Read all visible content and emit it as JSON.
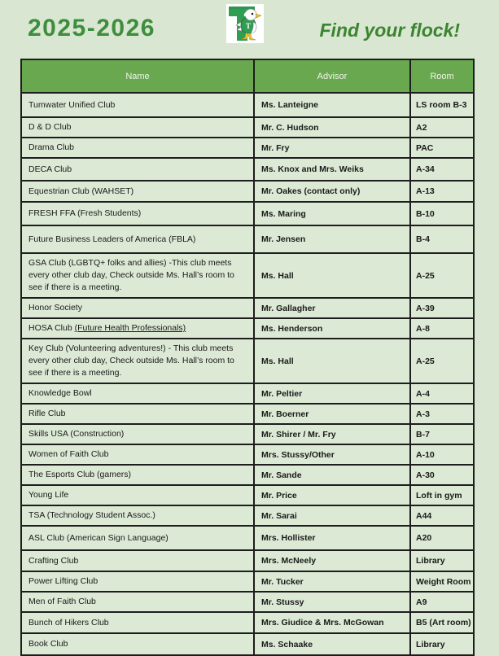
{
  "page": {
    "school_year": "2025-2026",
    "tagline": "Find your flock!",
    "logo": "tumwater-thunderbird-mascot-logo"
  },
  "colors": {
    "page_background": "#d9e7d2",
    "cell_background": "#dce9d5",
    "table_header_background": "#6aa84f",
    "table_header_text": "#eff5ea",
    "title_green": "#3e8e3d",
    "tagline_green": "#3c8430",
    "border": "#1d1d1d",
    "logo_green": "#2f9e52",
    "logo_yellow": "#e8c430"
  },
  "table": {
    "columns": [
      "Name",
      "Advisor",
      "Room"
    ],
    "rows": [
      {
        "name": "Tumwater Unified Club",
        "advisor": "Ms. Lanteigne",
        "room": "LS room B-3"
      },
      {
        "name": "D & D Club",
        "advisor": "Mr. C. Hudson",
        "room": "A2"
      },
      {
        "name": "Drama Club",
        "advisor": "Mr. Fry",
        "room": "PAC"
      },
      {
        "name": "DECA Club",
        "advisor": "Ms. Knox and Mrs. Weiks",
        "room": "A-34"
      },
      {
        "name": "Equestrian Club (WAHSET)",
        "advisor": "Mr. Oakes (contact only)",
        "room": "A-13"
      },
      {
        "name": "FRESH FFA (Fresh Students)",
        "advisor": "Ms. Maring",
        "room": "B-10"
      },
      {
        "name": "Future Business Leaders of America (FBLA)",
        "advisor": "Mr. Jensen",
        "room": "B-4"
      },
      {
        "name": "GSA Club (LGBTQ+ folks and allies) -This club meets every other club day, Check outside Ms. Hall’s room to see if there is a meeting.",
        "advisor": "Ms. Hall",
        "room": "A-25"
      },
      {
        "name": "Honor Society",
        "advisor": "Mr. Gallagher",
        "room": "A-39"
      },
      {
        "name": "HOSA Club ",
        "name_underlined": "(Future Health Professionals)",
        "advisor": "Ms. Henderson",
        "room": "A-8"
      },
      {
        "name": "Key Club (Volunteering adventures!) - This club meets every other club day, Check outside Ms. Hall’s room to see if there is a meeting.",
        "advisor": "Ms. Hall",
        "room": "A-25"
      },
      {
        "name": "Knowledge Bowl",
        "advisor": "Mr. Peltier",
        "room": "A-4"
      },
      {
        "name": "Rifle Club",
        "advisor": "Mr. Boerner",
        "room": "A-3"
      },
      {
        "name": "Skills USA (Construction)",
        "advisor": "Mr. Shirer / Mr. Fry",
        "room": "B-7"
      },
      {
        "name": "Women of Faith Club",
        "advisor": "Mrs. Stussy/Other",
        "room": "A-10"
      },
      {
        "name": "The Esports Club (gamers)",
        "advisor": "Mr. Sande",
        "room": "A-30"
      },
      {
        "name": "Young Life",
        "advisor": "Mr. Price",
        "room": "Loft in gym"
      },
      {
        "name": "TSA (Technology Student Assoc.)",
        "advisor": "Mr. Sarai",
        "room": "A44"
      },
      {
        "name": "ASL Club (American Sign Language)",
        "advisor": "Mrs. Hollister",
        "room": "A20"
      },
      {
        "name": "Crafting Club",
        "advisor": "Mrs. McNeely",
        "room": "Library"
      },
      {
        "name": "Power Lifting Club",
        "advisor": "Mr. Tucker",
        "room": "Weight Room"
      },
      {
        "name": "Men of Faith Club",
        "advisor": "Mr. Stussy",
        "room": "A9"
      },
      {
        "name": "Bunch of Hikers Club",
        "advisor": "Mrs. Giudice & Mrs. McGowan",
        "room": "B5 (Art room)"
      },
      {
        "name": "Book Club",
        "advisor": "Ms. Schaake",
        "room": "Library"
      }
    ]
  }
}
